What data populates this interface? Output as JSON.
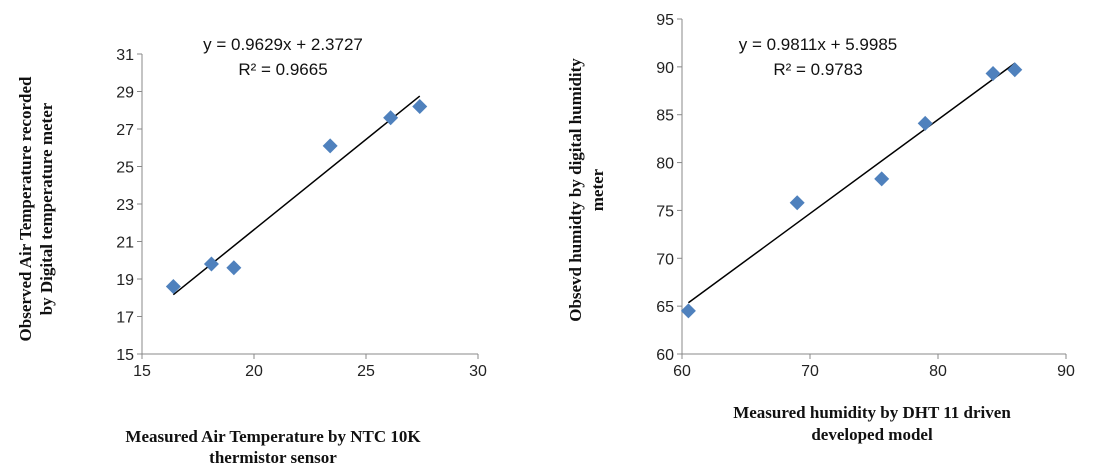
{
  "chart_data": [
    {
      "type": "scatter",
      "xlabel": [
        "Measured Air Temperature by NTC 10K",
        "thermistor sensor"
      ],
      "ylabel": [
        "Observed Air Temperature recorded",
        "by Digital temperature meter"
      ],
      "xlim": [
        15,
        30
      ],
      "ylim": [
        15,
        31
      ],
      "xticks": [
        15,
        20,
        25,
        30
      ],
      "yticks": [
        15,
        17,
        19,
        21,
        23,
        25,
        27,
        29,
        31
      ],
      "points": [
        {
          "x": 16.4,
          "y": 18.6
        },
        {
          "x": 18.1,
          "y": 19.8
        },
        {
          "x": 19.1,
          "y": 19.6
        },
        {
          "x": 23.4,
          "y": 26.1
        },
        {
          "x": 26.1,
          "y": 27.6
        },
        {
          "x": 27.4,
          "y": 28.2
        }
      ],
      "trendline": {
        "slope": 0.9629,
        "intercept": 2.3727,
        "x_range": [
          16.4,
          27.4
        ]
      },
      "equation": "y = 0.9629x + 2.3727",
      "r_squared": "R² = 0.9665",
      "marker_color": "#4f81bd",
      "grid": false
    },
    {
      "type": "scatter",
      "xlabel": [
        "Measured humidity by DHT 11 driven",
        "developed model"
      ],
      "ylabel": [
        "Obsevd humidty by digital humidity",
        "meter"
      ],
      "xlim": [
        60,
        90
      ],
      "ylim": [
        60,
        95
      ],
      "xticks": [
        60,
        70,
        80,
        90
      ],
      "yticks": [
        60,
        65,
        70,
        75,
        80,
        85,
        90,
        95
      ],
      "points": [
        {
          "x": 60.5,
          "y": 64.5
        },
        {
          "x": 69.0,
          "y": 75.8
        },
        {
          "x": 75.6,
          "y": 78.3
        },
        {
          "x": 79.0,
          "y": 84.1
        },
        {
          "x": 84.3,
          "y": 89.3
        },
        {
          "x": 86.0,
          "y": 89.7
        }
      ],
      "trendline": {
        "slope": 0.9811,
        "intercept": 5.9985,
        "x_range": [
          60.5,
          86.0
        ]
      },
      "equation": "y = 0.9811x + 5.9985",
      "r_squared": "R² = 0.9783",
      "marker_color": "#4f81bd",
      "grid": false
    }
  ]
}
